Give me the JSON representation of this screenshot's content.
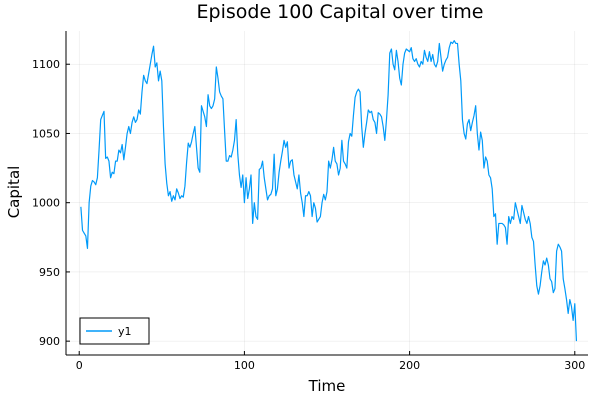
{
  "chart_data": {
    "type": "line",
    "title": "Episode 100 Capital over time",
    "xlabel": "Time",
    "ylabel": "Capital",
    "xlim": [
      -8,
      308
    ],
    "ylim": [
      890,
      1124
    ],
    "xticks": [
      0,
      100,
      200,
      300
    ],
    "yticks": [
      900,
      950,
      1000,
      1050,
      1100
    ],
    "grid": true,
    "legend_position": "bottom-left",
    "series": [
      {
        "name": "y1",
        "color": "#009af9",
        "points": [
          [
            1,
            997
          ],
          [
            2,
            980
          ],
          [
            3,
            978
          ],
          [
            4,
            976
          ],
          [
            5,
            967
          ],
          [
            6,
            1000
          ],
          [
            7,
            1012
          ],
          [
            8,
            1016
          ],
          [
            9,
            1015
          ],
          [
            10,
            1013
          ],
          [
            11,
            1018
          ],
          [
            12,
            1038
          ],
          [
            13,
            1060
          ],
          [
            14,
            1063
          ],
          [
            15,
            1066
          ],
          [
            16,
            1032
          ],
          [
            17,
            1033
          ],
          [
            18,
            1030
          ],
          [
            19,
            1018
          ],
          [
            20,
            1022
          ],
          [
            21,
            1021
          ],
          [
            22,
            1030
          ],
          [
            23,
            1030
          ],
          [
            24,
            1038
          ],
          [
            25,
            1036
          ],
          [
            26,
            1042
          ],
          [
            27,
            1031
          ],
          [
            28,
            1040
          ],
          [
            29,
            1050
          ],
          [
            30,
            1055
          ],
          [
            31,
            1050
          ],
          [
            32,
            1058
          ],
          [
            33,
            1062
          ],
          [
            34,
            1058
          ],
          [
            35,
            1060
          ],
          [
            36,
            1067
          ],
          [
            37,
            1064
          ],
          [
            38,
            1080
          ],
          [
            39,
            1092
          ],
          [
            40,
            1088
          ],
          [
            41,
            1086
          ],
          [
            42,
            1093
          ],
          [
            43,
            1100
          ],
          [
            44,
            1107
          ],
          [
            45,
            1113
          ],
          [
            46,
            1098
          ],
          [
            47,
            1101
          ],
          [
            48,
            1088
          ],
          [
            49,
            1095
          ],
          [
            50,
            1088
          ],
          [
            51,
            1055
          ],
          [
            52,
            1028
          ],
          [
            53,
            1014
          ],
          [
            54,
            1005
          ],
          [
            55,
            1008
          ],
          [
            56,
            1001
          ],
          [
            57,
            1005
          ],
          [
            58,
            1002
          ],
          [
            59,
            1010
          ],
          [
            60,
            1007
          ],
          [
            61,
            1003
          ],
          [
            62,
            1005
          ],
          [
            63,
            1004
          ],
          [
            64,
            1012
          ],
          [
            65,
            1029
          ],
          [
            66,
            1043
          ],
          [
            67,
            1040
          ],
          [
            68,
            1044
          ],
          [
            69,
            1050
          ],
          [
            70,
            1055
          ],
          [
            71,
            1040
          ],
          [
            72,
            1025
          ],
          [
            73,
            1022
          ],
          [
            74,
            1070
          ],
          [
            75,
            1066
          ],
          [
            76,
            1062
          ],
          [
            77,
            1055
          ],
          [
            78,
            1078
          ],
          [
            79,
            1070
          ],
          [
            80,
            1068
          ],
          [
            81,
            1070
          ],
          [
            82,
            1075
          ],
          [
            83,
            1098
          ],
          [
            84,
            1090
          ],
          [
            85,
            1080
          ],
          [
            86,
            1077
          ],
          [
            87,
            1075
          ],
          [
            88,
            1052
          ],
          [
            89,
            1030
          ],
          [
            90,
            1030
          ],
          [
            91,
            1034
          ],
          [
            92,
            1033
          ],
          [
            93,
            1038
          ],
          [
            94,
            1045
          ],
          [
            95,
            1060
          ],
          [
            96,
            1035
          ],
          [
            97,
            1020
          ],
          [
            98,
            1011
          ],
          [
            99,
            1020
          ],
          [
            100,
            1000
          ],
          [
            101,
            1018
          ],
          [
            102,
            1003
          ],
          [
            103,
            1010
          ],
          [
            104,
            1020
          ],
          [
            105,
            985
          ],
          [
            106,
            1000
          ],
          [
            107,
            990
          ],
          [
            108,
            988
          ],
          [
            109,
            1024
          ],
          [
            110,
            1025
          ],
          [
            111,
            1030
          ],
          [
            112,
            1018
          ],
          [
            113,
            1010
          ],
          [
            114,
            1002
          ],
          [
            115,
            1005
          ],
          [
            116,
            1006
          ],
          [
            117,
            1010
          ],
          [
            118,
            1035
          ],
          [
            119,
            1005
          ],
          [
            120,
            1010
          ],
          [
            121,
            1022
          ],
          [
            122,
            1030
          ],
          [
            123,
            1037
          ],
          [
            124,
            1045
          ],
          [
            125,
            1040
          ],
          [
            126,
            1044
          ],
          [
            127,
            1025
          ],
          [
            128,
            1030
          ],
          [
            129,
            1031
          ],
          [
            130,
            1020
          ],
          [
            131,
            1015
          ],
          [
            132,
            1010
          ],
          [
            133,
            1020
          ],
          [
            134,
            1007
          ],
          [
            135,
            1000
          ],
          [
            136,
            990
          ],
          [
            137,
            1005
          ],
          [
            138,
            1005
          ],
          [
            139,
            1008
          ],
          [
            140,
            1005
          ],
          [
            141,
            990
          ],
          [
            142,
            1000
          ],
          [
            143,
            996
          ],
          [
            144,
            986
          ],
          [
            145,
            988
          ],
          [
            146,
            990
          ],
          [
            147,
            1000
          ],
          [
            148,
            1006
          ],
          [
            149,
            1002
          ],
          [
            150,
            1008
          ],
          [
            151,
            1030
          ],
          [
            152,
            1025
          ],
          [
            153,
            1031
          ],
          [
            154,
            1040
          ],
          [
            155,
            1030
          ],
          [
            156,
            1028
          ],
          [
            157,
            1020
          ],
          [
            158,
            1025
          ],
          [
            159,
            1045
          ],
          [
            160,
            1030
          ],
          [
            161,
            1028
          ],
          [
            162,
            1025
          ],
          [
            163,
            1044
          ],
          [
            164,
            1050
          ],
          [
            165,
            1048
          ],
          [
            166,
            1063
          ],
          [
            167,
            1076
          ],
          [
            168,
            1080
          ],
          [
            169,
            1082
          ],
          [
            170,
            1080
          ],
          [
            171,
            1055
          ],
          [
            172,
            1040
          ],
          [
            173,
            1050
          ],
          [
            174,
            1058
          ],
          [
            175,
            1067
          ],
          [
            176,
            1065
          ],
          [
            177,
            1066
          ],
          [
            178,
            1060
          ],
          [
            179,
            1058
          ],
          [
            180,
            1050
          ],
          [
            181,
            1065
          ],
          [
            182,
            1064
          ],
          [
            183,
            1062
          ],
          [
            184,
            1055
          ],
          [
            185,
            1045
          ],
          [
            186,
            1060
          ],
          [
            187,
            1078
          ],
          [
            188,
            1108
          ],
          [
            189,
            1111
          ],
          [
            190,
            1100
          ],
          [
            191,
            1096
          ],
          [
            192,
            1110
          ],
          [
            193,
            1102
          ],
          [
            194,
            1090
          ],
          [
            195,
            1085
          ],
          [
            196,
            1100
          ],
          [
            197,
            1108
          ],
          [
            198,
            1111
          ],
          [
            199,
            1110
          ],
          [
            200,
            1109
          ],
          [
            201,
            1112
          ],
          [
            202,
            1104
          ],
          [
            203,
            1102
          ],
          [
            204,
            1104
          ],
          [
            205,
            1100
          ],
          [
            206,
            1098
          ],
          [
            207,
            1102
          ],
          [
            208,
            1100
          ],
          [
            209,
            1110
          ],
          [
            210,
            1105
          ],
          [
            211,
            1102
          ],
          [
            212,
            1109
          ],
          [
            213,
            1102
          ],
          [
            214,
            1107
          ],
          [
            215,
            1100
          ],
          [
            216,
            1098
          ],
          [
            217,
            1102
          ],
          [
            218,
            1115
          ],
          [
            219,
            1105
          ],
          [
            220,
            1095
          ],
          [
            221,
            1100
          ],
          [
            222,
            1103
          ],
          [
            223,
            1105
          ],
          [
            224,
            1112
          ],
          [
            225,
            1116
          ],
          [
            226,
            1115
          ],
          [
            227,
            1117
          ],
          [
            228,
            1115
          ],
          [
            229,
            1115
          ],
          [
            230,
            1100
          ],
          [
            231,
            1088
          ],
          [
            232,
            1060
          ],
          [
            233,
            1050
          ],
          [
            234,
            1046
          ],
          [
            235,
            1057
          ],
          [
            236,
            1060
          ],
          [
            237,
            1052
          ],
          [
            238,
            1058
          ],
          [
            239,
            1063
          ],
          [
            240,
            1070
          ],
          [
            241,
            1050
          ],
          [
            242,
            1038
          ],
          [
            243,
            1051
          ],
          [
            244,
            1045
          ],
          [
            245,
            1025
          ],
          [
            246,
            1033
          ],
          [
            247,
            1030
          ],
          [
            248,
            1020
          ],
          [
            249,
            1018
          ],
          [
            250,
            1010
          ],
          [
            251,
            990
          ],
          [
            252,
            992
          ],
          [
            253,
            970
          ],
          [
            254,
            985
          ],
          [
            255,
            985
          ],
          [
            256,
            985
          ],
          [
            257,
            984
          ],
          [
            258,
            982
          ],
          [
            259,
            970
          ],
          [
            260,
            990
          ],
          [
            261,
            985
          ],
          [
            262,
            990
          ],
          [
            263,
            988
          ],
          [
            264,
            1000
          ],
          [
            265,
            995
          ],
          [
            266,
            990
          ],
          [
            267,
            985
          ],
          [
            268,
            998
          ],
          [
            269,
            993
          ],
          [
            270,
            988
          ],
          [
            271,
            985
          ],
          [
            272,
            990
          ],
          [
            273,
            985
          ],
          [
            274,
            975
          ],
          [
            275,
            972
          ],
          [
            276,
            955
          ],
          [
            277,
            940
          ],
          [
            278,
            934
          ],
          [
            279,
            940
          ],
          [
            280,
            950
          ],
          [
            281,
            958
          ],
          [
            282,
            955
          ],
          [
            283,
            960
          ],
          [
            284,
            955
          ],
          [
            285,
            945
          ],
          [
            286,
            943
          ],
          [
            287,
            935
          ],
          [
            288,
            938
          ],
          [
            289,
            965
          ],
          [
            290,
            970
          ],
          [
            291,
            968
          ],
          [
            292,
            965
          ],
          [
            293,
            945
          ],
          [
            294,
            938
          ],
          [
            295,
            930
          ],
          [
            296,
            920
          ],
          [
            297,
            930
          ],
          [
            298,
            925
          ],
          [
            299,
            915
          ],
          [
            300,
            927
          ],
          [
            301,
            900
          ]
        ]
      }
    ]
  }
}
